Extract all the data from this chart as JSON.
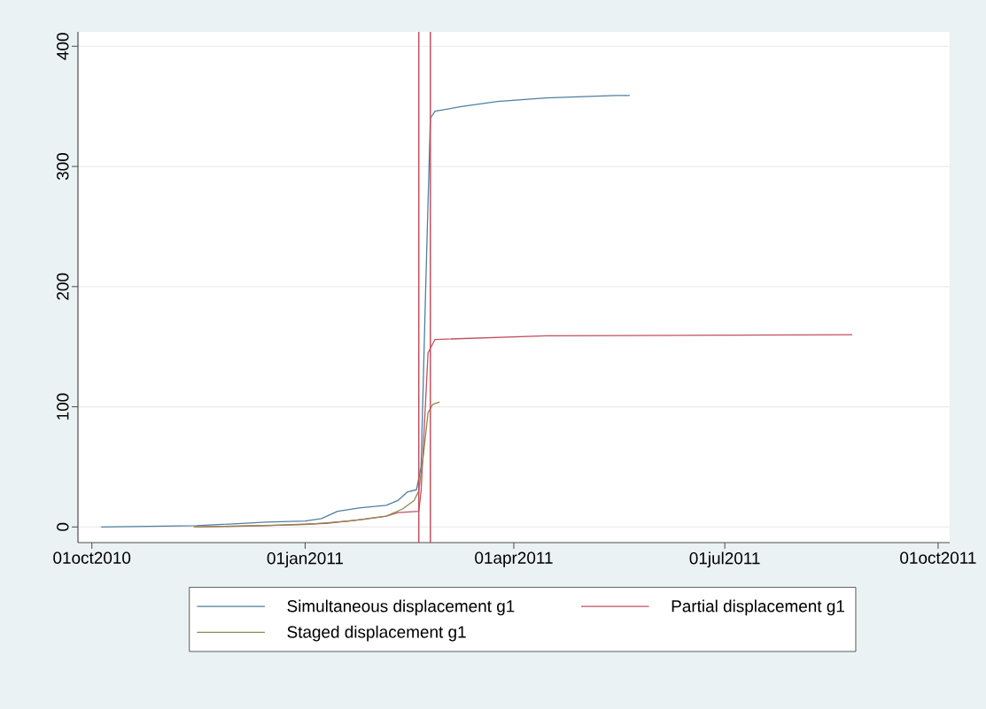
{
  "chart_data": {
    "type": "line",
    "xlim": [
      "2010-09-25",
      "2011-10-06"
    ],
    "xticks": [
      {
        "value": "2010-10-01",
        "label": "01oct2010"
      },
      {
        "value": "2011-01-01",
        "label": "01jan2011"
      },
      {
        "value": "2011-04-01",
        "label": "01apr2011"
      },
      {
        "value": "2011-07-01",
        "label": "01jul2011"
      },
      {
        "value": "2011-10-01",
        "label": "01oct2011"
      }
    ],
    "ylim": [
      -13,
      412
    ],
    "yticks": [
      0,
      100,
      200,
      300,
      400
    ],
    "grid": "y",
    "legend": "bottom",
    "line_style": "solid",
    "marker": "none",
    "ref_lines": [
      {
        "axis": "x",
        "value": "2011-02-19",
        "color": "#c4505e"
      },
      {
        "axis": "x",
        "value": "2011-02-24",
        "color": "#c4505e"
      }
    ],
    "series": [
      {
        "name": "Simultaneous displacement g1",
        "color": "#4f7fa0",
        "x": [
          "2010-10-05",
          "2010-11-15",
          "2010-12-15",
          "2011-01-01",
          "2011-01-08",
          "2011-01-15",
          "2011-01-25",
          "2011-02-05",
          "2011-02-10",
          "2011-02-14",
          "2011-02-18",
          "2011-02-20",
          "2011-02-22",
          "2011-02-24",
          "2011-02-26",
          "2011-03-10",
          "2011-03-25",
          "2011-04-15",
          "2011-05-15",
          "2011-05-21"
        ],
        "values": [
          0,
          1,
          4,
          5,
          7,
          13,
          16,
          18,
          22,
          29,
          31,
          50,
          200,
          340,
          346,
          350,
          354,
          357,
          359,
          359
        ]
      },
      {
        "name": "Partial displacement g1",
        "color": "#c0505e",
        "x": [
          "2010-11-14",
          "2010-12-15",
          "2011-01-10",
          "2011-01-25",
          "2011-02-05",
          "2011-02-10",
          "2011-02-19",
          "2011-02-20",
          "2011-02-23",
          "2011-02-26",
          "2011-04-15",
          "2011-08-25"
        ],
        "values": [
          0,
          1,
          3,
          6,
          9,
          12,
          13,
          30,
          145,
          156,
          159,
          160
        ]
      },
      {
        "name": "Staged displacement g1",
        "color": "#8a8a50",
        "x": [
          "2010-11-14",
          "2011-01-01",
          "2011-01-20",
          "2011-02-05",
          "2011-02-12",
          "2011-02-17",
          "2011-02-19",
          "2011-02-21",
          "2011-02-23",
          "2011-02-25",
          "2011-02-28"
        ],
        "values": [
          0,
          2,
          5,
          9,
          15,
          22,
          30,
          60,
          95,
          102,
          104
        ]
      }
    ]
  }
}
